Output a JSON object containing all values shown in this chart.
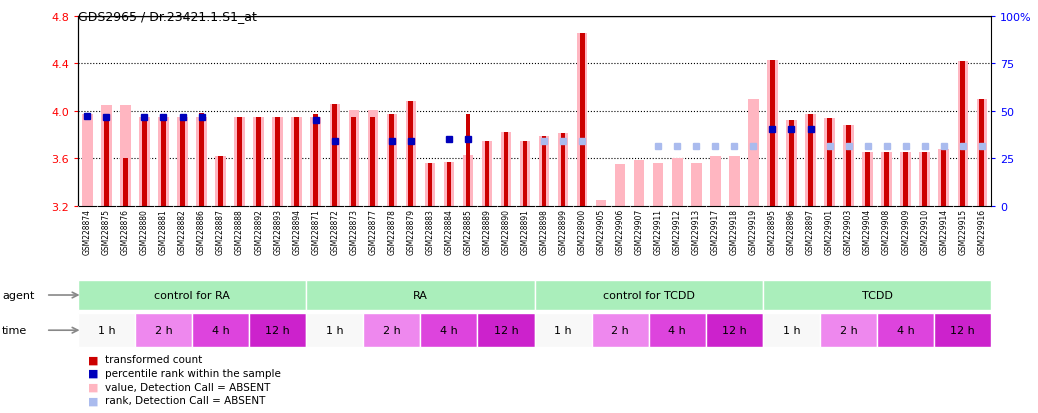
{
  "title": "GDS2965 / Dr.23421.1.S1_at",
  "ylim_left": [
    3.2,
    4.8
  ],
  "ylim_right": [
    0,
    100
  ],
  "yticks_left": [
    3.2,
    3.6,
    4.0,
    4.4,
    4.8
  ],
  "yticks_right": [
    0,
    25,
    50,
    75,
    100
  ],
  "ytick_labels_right": [
    "0",
    "25",
    "50",
    "75",
    "100%"
  ],
  "dotted_lines": [
    3.6,
    4.0,
    4.4
  ],
  "samples": [
    "GSM228874",
    "GSM228875",
    "GSM228876",
    "GSM228880",
    "GSM228881",
    "GSM228882",
    "GSM228886",
    "GSM228887",
    "GSM228888",
    "GSM228892",
    "GSM228893",
    "GSM228894",
    "GSM228871",
    "GSM228872",
    "GSM228873",
    "GSM228877",
    "GSM228878",
    "GSM228879",
    "GSM228883",
    "GSM228884",
    "GSM228885",
    "GSM228889",
    "GSM228890",
    "GSM228891",
    "GSM228898",
    "GSM228899",
    "GSM228900",
    "GSM229905",
    "GSM229906",
    "GSM229907",
    "GSM229911",
    "GSM229912",
    "GSM229913",
    "GSM229917",
    "GSM229918",
    "GSM229919",
    "GSM228895",
    "GSM228896",
    "GSM228897",
    "GSM229901",
    "GSM229903",
    "GSM229904",
    "GSM229908",
    "GSM229909",
    "GSM229910",
    "GSM229914",
    "GSM229915",
    "GSM229916"
  ],
  "bar_values": [
    3.98,
    3.96,
    3.6,
    3.95,
    3.93,
    3.95,
    3.98,
    3.62,
    3.95,
    3.95,
    3.95,
    3.95,
    3.97,
    4.06,
    3.95,
    3.95,
    3.97,
    4.08,
    3.56,
    3.57,
    3.97,
    3.75,
    3.82,
    3.75,
    3.79,
    3.81,
    4.65,
    3.3,
    3.55,
    3.59,
    3.56,
    3.6,
    3.56,
    3.62,
    3.62,
    3.62,
    4.43,
    3.92,
    3.97,
    3.94,
    3.88,
    3.65,
    3.65,
    3.65,
    3.65,
    3.68,
    4.42,
    4.1
  ],
  "bar_absent": [
    true,
    false,
    false,
    false,
    false,
    false,
    false,
    false,
    false,
    false,
    false,
    false,
    false,
    false,
    false,
    false,
    false,
    false,
    false,
    false,
    false,
    false,
    false,
    false,
    false,
    false,
    false,
    true,
    true,
    true,
    true,
    true,
    true,
    true,
    true,
    true,
    false,
    false,
    false,
    false,
    false,
    false,
    false,
    false,
    false,
    false,
    false,
    false
  ],
  "pink_values": [
    3.97,
    4.05,
    4.05,
    3.95,
    3.95,
    3.95,
    3.95,
    3.62,
    3.95,
    3.95,
    3.95,
    3.95,
    3.95,
    4.06,
    4.01,
    4.01,
    3.97,
    4.08,
    3.56,
    3.57,
    3.63,
    3.75,
    3.82,
    3.75,
    3.79,
    3.81,
    4.65,
    3.25,
    3.55,
    3.59,
    3.56,
    3.6,
    3.56,
    3.62,
    3.62,
    4.1,
    4.43,
    3.92,
    3.97,
    3.94,
    3.88,
    3.65,
    3.65,
    3.65,
    3.65,
    3.68,
    4.42,
    4.1
  ],
  "rank_values": [
    3.96,
    3.95,
    null,
    3.95,
    3.95,
    3.95,
    3.95,
    null,
    null,
    null,
    null,
    null,
    3.92,
    3.75,
    null,
    null,
    3.75,
    3.75,
    null,
    3.76,
    3.76,
    null,
    null,
    null,
    null,
    null,
    null,
    null,
    null,
    null,
    null,
    null,
    null,
    null,
    null,
    null,
    3.85,
    3.85,
    3.85,
    null,
    null,
    null,
    null,
    null,
    null,
    null,
    null,
    null
  ],
  "rank_absent_values": [
    null,
    null,
    null,
    null,
    null,
    null,
    null,
    null,
    null,
    null,
    null,
    null,
    null,
    null,
    null,
    null,
    null,
    null,
    null,
    null,
    null,
    null,
    null,
    null,
    3.75,
    3.75,
    3.75,
    null,
    null,
    null,
    3.7,
    3.7,
    3.7,
    3.7,
    3.7,
    3.7,
    null,
    null,
    null,
    3.7,
    3.7,
    3.7,
    3.7,
    3.7,
    3.7,
    3.7,
    3.7,
    3.7
  ],
  "agents": [
    {
      "label": "control for RA",
      "start": 0,
      "end": 11,
      "color": "#aaeebb"
    },
    {
      "label": "RA",
      "start": 12,
      "end": 23,
      "color": "#aaeebb"
    },
    {
      "label": "control for TCDD",
      "start": 24,
      "end": 35,
      "color": "#aaeebb"
    },
    {
      "label": "TCDD",
      "start": 36,
      "end": 47,
      "color": "#aaeebb"
    }
  ],
  "times": [
    {
      "label": "1 h",
      "start": 0,
      "end": 2,
      "color": "#f8f8f8"
    },
    {
      "label": "2 h",
      "start": 3,
      "end": 5,
      "color": "#ee88ee"
    },
    {
      "label": "4 h",
      "start": 6,
      "end": 8,
      "color": "#dd44dd"
    },
    {
      "label": "12 h",
      "start": 9,
      "end": 11,
      "color": "#cc22cc"
    },
    {
      "label": "1 h",
      "start": 12,
      "end": 14,
      "color": "#f8f8f8"
    },
    {
      "label": "2 h",
      "start": 15,
      "end": 17,
      "color": "#ee88ee"
    },
    {
      "label": "4 h",
      "start": 18,
      "end": 20,
      "color": "#dd44dd"
    },
    {
      "label": "12 h",
      "start": 21,
      "end": 23,
      "color": "#cc22cc"
    },
    {
      "label": "1 h",
      "start": 24,
      "end": 26,
      "color": "#f8f8f8"
    },
    {
      "label": "2 h",
      "start": 27,
      "end": 29,
      "color": "#ee88ee"
    },
    {
      "label": "4 h",
      "start": 30,
      "end": 32,
      "color": "#dd44dd"
    },
    {
      "label": "12 h",
      "start": 33,
      "end": 35,
      "color": "#cc22cc"
    },
    {
      "label": "1 h",
      "start": 36,
      "end": 38,
      "color": "#f8f8f8"
    },
    {
      "label": "2 h",
      "start": 39,
      "end": 41,
      "color": "#ee88ee"
    },
    {
      "label": "4 h",
      "start": 42,
      "end": 44,
      "color": "#dd44dd"
    },
    {
      "label": "12 h",
      "start": 45,
      "end": 47,
      "color": "#cc22cc"
    }
  ],
  "bar_color_red": "#cc0000",
  "bar_color_pink": "#ffb6c1",
  "dot_color_blue": "#0000bb",
  "dot_color_light_blue": "#aabbee",
  "bg_color": "#ffffff",
  "label_bg_color": "#dddddd",
  "ybase": 3.2
}
